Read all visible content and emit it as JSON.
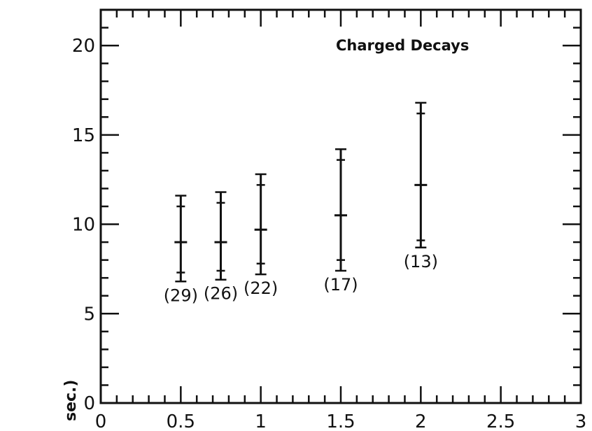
{
  "chart_data": {
    "type": "scatter",
    "annotation": "Charged Decays",
    "ylabel_visible": "sec.)",
    "xlim": [
      0,
      3
    ],
    "ylim": [
      0,
      22
    ],
    "x_ticks": [
      "0",
      "0.5",
      "1",
      "1.5",
      "2",
      "2.5",
      "3"
    ],
    "y_ticks": [
      "0",
      "5",
      "10",
      "15",
      "20"
    ],
    "points": [
      {
        "x": 0.5,
        "y": 9.0,
        "inner_low": 7.3,
        "inner_high": 11.0,
        "outer_low": 6.8,
        "outer_high": 11.6,
        "count": "(29)"
      },
      {
        "x": 0.75,
        "y": 9.0,
        "inner_low": 7.4,
        "inner_high": 11.2,
        "outer_low": 6.9,
        "outer_high": 11.8,
        "count": "(26)"
      },
      {
        "x": 1.0,
        "y": 9.7,
        "inner_low": 7.8,
        "inner_high": 12.2,
        "outer_low": 7.2,
        "outer_high": 12.8,
        "count": "(22)"
      },
      {
        "x": 1.5,
        "y": 10.5,
        "inner_low": 8.0,
        "inner_high": 13.6,
        "outer_low": 7.4,
        "outer_high": 14.2,
        "count": "(17)"
      },
      {
        "x": 2.0,
        "y": 12.2,
        "inner_low": 9.1,
        "inner_high": 16.2,
        "outer_low": 8.7,
        "outer_high": 16.8,
        "count": "(13)"
      }
    ]
  }
}
